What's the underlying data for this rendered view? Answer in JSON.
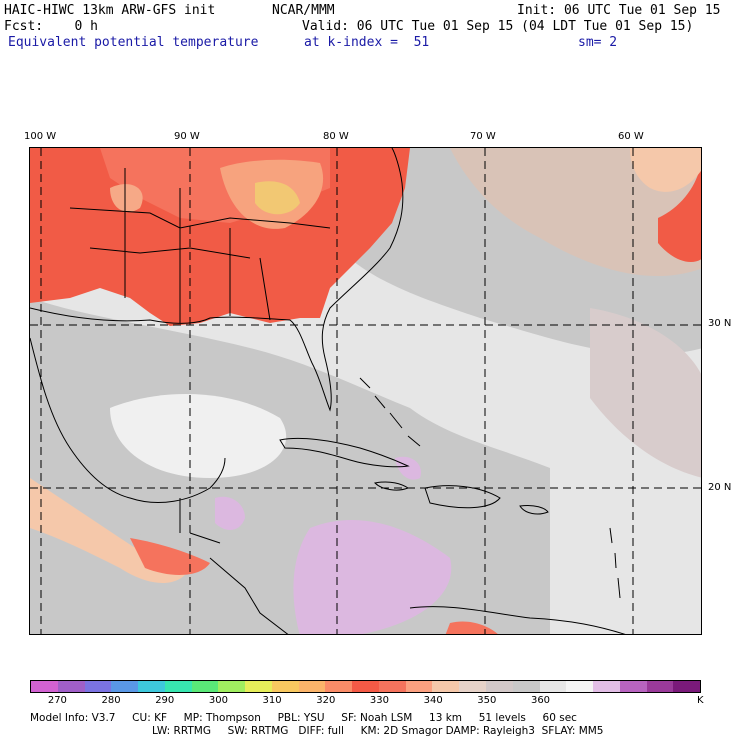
{
  "header": {
    "model_line": "HAIC-HIWC 13km ARW-GFS init",
    "institution": "NCAR/MMM",
    "init_time": "Init: 06 UTC Tue 01 Sep 15",
    "forecast": "Fcst:    0 h",
    "valid_time": "Valid: 06 UTC Tue 01 Sep 15 (04 LDT Tue 01 Sep 15)",
    "field": "Equivalent potential temperature",
    "level": "at k-index =  51",
    "smoothing": "sm= 2"
  },
  "map": {
    "longitude_labels": [
      "100 W",
      "90 W",
      "80 W",
      "70 W",
      "60 W"
    ],
    "latitude_labels": [
      "30 N",
      "20 N"
    ]
  },
  "colorbar": {
    "unit": "K",
    "tick_labels": [
      "270",
      "280",
      "290",
      "300",
      "310",
      "320",
      "330",
      "340",
      "350",
      "360"
    ],
    "colors": [
      "#d262d2",
      "#a05fc8",
      "#7b73e2",
      "#5a98e6",
      "#3ec8dc",
      "#38e6b0",
      "#5ae878",
      "#a0ee60",
      "#e6ee5a",
      "#f8c860",
      "#fbb46a",
      "#fa8c68",
      "#f45a46",
      "#f5735d",
      "#fba080",
      "#f5c8aa",
      "#e6d2c8",
      "#d2c8c8",
      "#c8c8c8",
      "#e6e6e6",
      "#f4f4f4",
      "#e2bee6",
      "#b864c0",
      "#9a3a9a",
      "#7a1a7a"
    ]
  },
  "footer": {
    "line1": "Model Info: V3.7     CU: KF     MP: Thompson     PBL: YSU     SF: Noah LSM     13 km     51 levels     60 sec",
    "line2": "LW: RRTMG     SW: RRTMG   DIFF: full     KM: 2D Smagor DAMP: Rayleigh3  SFLAY: MM5"
  }
}
